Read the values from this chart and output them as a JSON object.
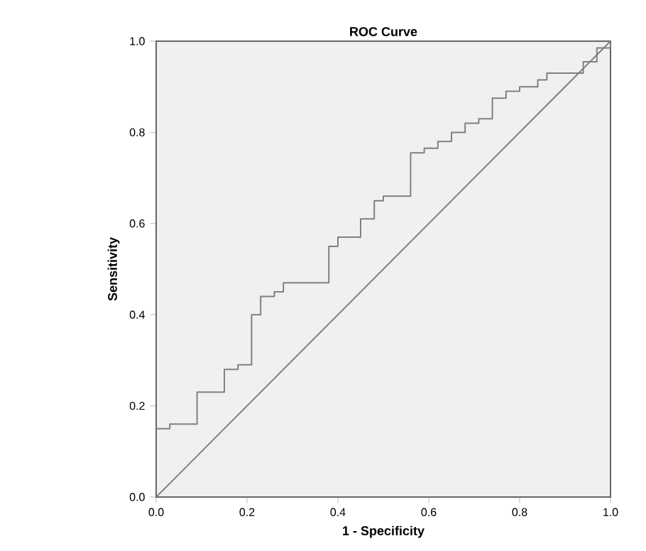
{
  "chart_data": {
    "type": "step",
    "title": "ROC Curve",
    "xlabel": "1 - Specificity",
    "ylabel": "Sensitivity",
    "xlim": [
      0,
      1
    ],
    "ylim": [
      0,
      1
    ],
    "xticks": [
      {
        "value": 0,
        "label": "0.0"
      },
      {
        "value": 0.2,
        "label": "0.2"
      },
      {
        "value": 0.4,
        "label": "0.4"
      },
      {
        "value": 0.6,
        "label": "0.6"
      },
      {
        "value": 0.8,
        "label": "0.8"
      },
      {
        "value": 1,
        "label": "1.0"
      }
    ],
    "yticks": [
      {
        "value": 0,
        "label": "0.0"
      },
      {
        "value": 0.2,
        "label": "0.2"
      },
      {
        "value": 0.4,
        "label": "0.4"
      },
      {
        "value": 0.6,
        "label": "0.6"
      },
      {
        "value": 0.8,
        "label": "0.8"
      },
      {
        "value": 1,
        "label": "1.0"
      }
    ],
    "grid": false,
    "series": [
      {
        "color": "#808080",
        "x": [
          0,
          0.03,
          0.09,
          0.15,
          0.18,
          0.21,
          0.23,
          0.26,
          0.28,
          0.38,
          0.4,
          0.45,
          0.48,
          0.5,
          0.56,
          0.59,
          0.62,
          0.65,
          0.68,
          0.71,
          0.74,
          0.77,
          0.8,
          0.84,
          0.86,
          0.94,
          0.97,
          1
        ],
        "values": [
          0.15,
          0.16,
          0.23,
          0.28,
          0.29,
          0.4,
          0.44,
          0.45,
          0.47,
          0.55,
          0.57,
          0.61,
          0.65,
          0.66,
          0.755,
          0.765,
          0.78,
          0.8,
          0.82,
          0.83,
          0.875,
          0.89,
          0.9,
          0.915,
          0.93,
          0.955,
          0.985,
          1
        ]
      },
      {
        "type": "line",
        "color": "#808080",
        "x": [
          0,
          1
        ],
        "values": [
          0,
          1
        ]
      }
    ]
  }
}
